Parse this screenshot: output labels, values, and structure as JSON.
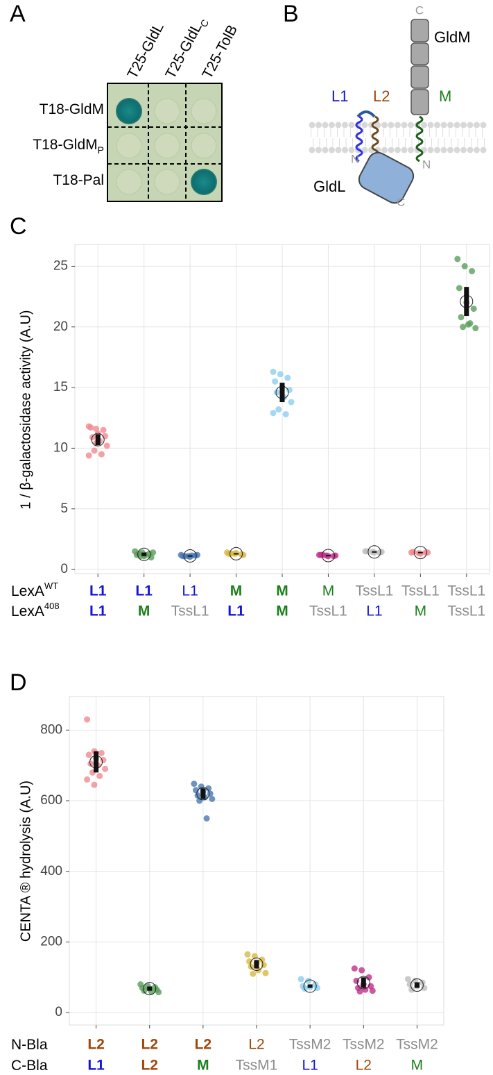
{
  "panel_a": {
    "letter": "A",
    "columns": [
      {
        "text": "T25-GldL"
      },
      {
        "text": "T25-GldL",
        "sub": "C"
      },
      {
        "text": "T25-TolB"
      }
    ],
    "rows": [
      {
        "text": "T18-GldM"
      },
      {
        "text": "T18-GldM",
        "sub": "P"
      },
      {
        "text": "T18-Pal"
      }
    ]
  },
  "panel_b": {
    "letter": "B",
    "labels": {
      "gldm": "GldM",
      "gldm_c": "C",
      "l1": "L1",
      "l2": "L2",
      "m": "M",
      "l_n": "N",
      "m_n": "N",
      "gldl": "GldL",
      "gldl_c": "C"
    }
  },
  "chart_data": [
    {
      "letter": "C",
      "type": "strip",
      "y_label": "1 / β-galactosidase activity (A.U)",
      "ylim": [
        -0.34,
        26.8
      ],
      "yticks": [
        0,
        5,
        10,
        15,
        20,
        25
      ],
      "grid": true,
      "row_labels": [
        {
          "text": "LexA",
          "sup": "WT"
        },
        {
          "text": "LexA",
          "sup": "408"
        }
      ],
      "categories_top": [
        "L1",
        "L1",
        "L1",
        "M",
        "M",
        "M",
        "TssL1",
        "TssL1",
        "TssL1"
      ],
      "categories_bottom": [
        "L1",
        "M",
        "TssL1",
        "L1",
        "M",
        "TssL1",
        "L1",
        "M",
        "TssL1"
      ],
      "bold": [
        true,
        true,
        false,
        true,
        true,
        false,
        false,
        false,
        false
      ],
      "label_colors": {
        "L1": "#1414d8",
        "M": "#1b7f1b",
        "TssL1": "#8c8c8c"
      },
      "groups": [
        {
          "color": "#f08890",
          "values": [
            11.8,
            11.6,
            11.5,
            11.7,
            11.2,
            11.0,
            10.9,
            10.6,
            10.2,
            9.8,
            9.5,
            9.4,
            10.4
          ],
          "mean": 10.7,
          "error": 0.45
        },
        {
          "color": "#5a9e5a",
          "values": [
            1.5,
            1.4,
            1.3,
            1.2,
            1.1,
            1.0,
            1.3,
            1.2,
            1.4,
            1.1
          ],
          "mean": 1.25,
          "error": 0.15
        },
        {
          "color": "#4a78b4",
          "values": [
            1.2,
            1.1,
            1.15,
            1.1,
            1.05,
            1.2,
            1.1,
            1.15
          ],
          "mean": 1.12,
          "error": 0.05
        },
        {
          "color": "#d8b840",
          "values": [
            1.4,
            1.3,
            1.25,
            1.3,
            1.35,
            1.2,
            1.3
          ],
          "mean": 1.3,
          "error": 0.05
        },
        {
          "color": "#8ccdf0",
          "values": [
            16.3,
            16.1,
            15.8,
            15.5,
            15.0,
            14.8,
            14.6,
            14.2,
            13.8,
            13.2,
            12.8,
            12.9
          ],
          "mean": 14.6,
          "error": 0.8
        },
        {
          "color": "#c0308a",
          "values": [
            1.2,
            1.15,
            1.1,
            1.2,
            1.1,
            1.15,
            1.2
          ],
          "mean": 1.15,
          "error": 0.05
        },
        {
          "color": "#bdbdbd",
          "values": [
            1.5,
            1.45,
            1.4,
            1.5,
            1.4,
            1.45
          ],
          "mean": 1.45,
          "error": 0.05
        },
        {
          "color": "#f08890",
          "values": [
            1.4,
            1.35,
            1.4,
            1.45,
            1.3,
            1.4
          ],
          "mean": 1.4,
          "error": 0.05
        },
        {
          "color": "#5a9e5a",
          "values": [
            25.6,
            25.0,
            24.6,
            23.2,
            22.0,
            21.5,
            20.8,
            20.2,
            19.9,
            20.0,
            20.3
          ],
          "mean": 22.1,
          "error": 1.2
        }
      ]
    },
    {
      "letter": "D",
      "type": "strip",
      "y_label": "CENTA ® hydrolysis (A.U)",
      "ylim": [
        -35,
        895
      ],
      "yticks": [
        0,
        200,
        400,
        600,
        800
      ],
      "grid": true,
      "row_labels": [
        {
          "text": "N-Bla"
        },
        {
          "text": "C-Bla"
        }
      ],
      "categories_top": [
        "L2",
        "L2",
        "L2",
        "L2",
        "TssM2",
        "TssM2",
        "TssM2"
      ],
      "categories_bottom": [
        "L1",
        "L2",
        "M",
        "TssM1",
        "L1",
        "L2",
        "M"
      ],
      "bold": [
        true,
        true,
        true,
        false,
        false,
        false,
        false
      ],
      "label_colors": {
        "L1": "#1414d8",
        "L2": "#a0460a",
        "M": "#1b7f1b",
        "TssM1": "#8c8c8c",
        "TssM2": "#8c8c8c"
      },
      "groups": [
        {
          "color": "#f08890",
          "values": [
            830,
            740,
            735,
            730,
            720,
            715,
            705,
            700,
            690,
            680,
            670,
            660,
            645
          ],
          "mean": 710,
          "error": 30
        },
        {
          "color": "#5a9e5a",
          "values": [
            80,
            75,
            72,
            70,
            68,
            65,
            62,
            60,
            58
          ],
          "mean": 68,
          "error": 6
        },
        {
          "color": "#4a78b4",
          "values": [
            648,
            640,
            635,
            630,
            625,
            620,
            615,
            610,
            605,
            600,
            550
          ],
          "mean": 620,
          "error": 15
        },
        {
          "color": "#d8b840",
          "values": [
            165,
            160,
            150,
            145,
            140,
            135,
            130,
            120,
            112,
            110
          ],
          "mean": 137,
          "error": 12
        },
        {
          "color": "#8ccdf0",
          "values": [
            95,
            90,
            80,
            75,
            72,
            70,
            68
          ],
          "mean": 75,
          "error": 5
        },
        {
          "color": "#c0308a",
          "values": [
            125,
            120,
            100,
            90,
            80,
            75,
            70,
            65,
            62,
            60
          ],
          "mean": 85,
          "error": 15
        },
        {
          "color": "#bdbdbd",
          "values": [
            95,
            90,
            85,
            80,
            75,
            70,
            65
          ],
          "mean": 78,
          "error": 8
        }
      ]
    }
  ]
}
